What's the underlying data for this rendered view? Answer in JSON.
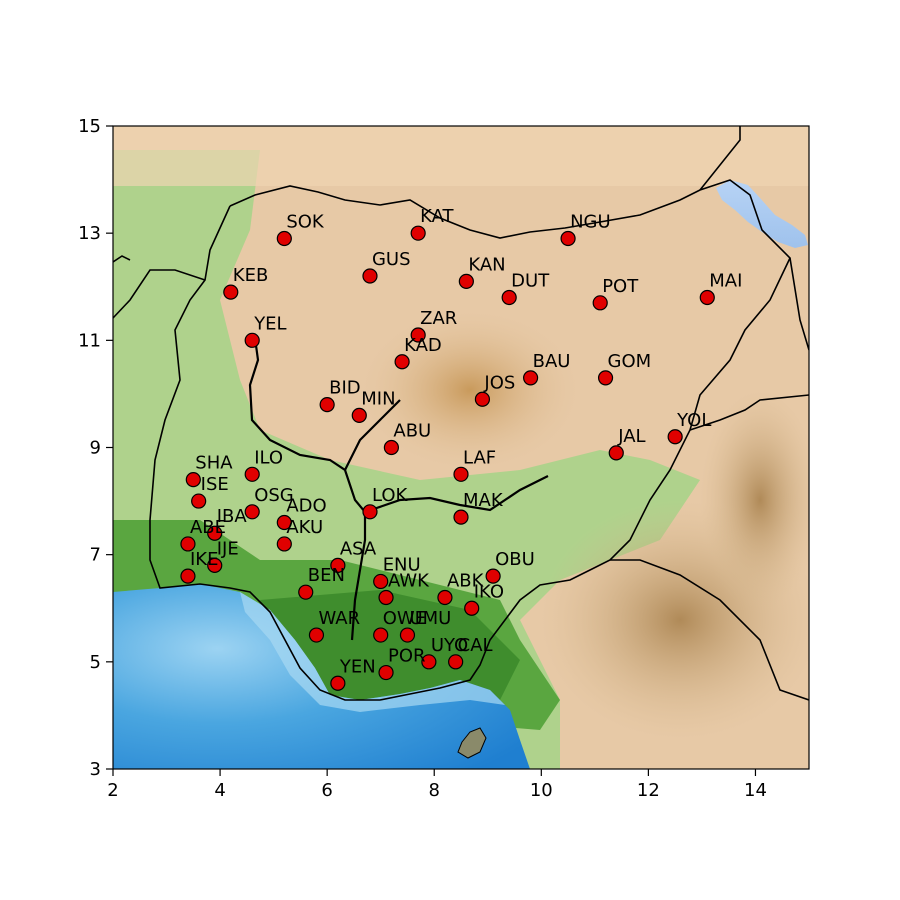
{
  "map": {
    "region": "Nigeria",
    "x_range": [
      2,
      15
    ],
    "y_range": [
      3,
      15
    ],
    "x_ticks": [
      2,
      4,
      6,
      8,
      10,
      12,
      14
    ],
    "y_ticks": [
      3,
      5,
      7,
      9,
      11,
      13,
      15
    ],
    "marker_color": "#e00000",
    "marker_edge_color": "#000000",
    "ocean_color": "#3e9ad8",
    "land_green": "#6cb84e",
    "land_tan": "#e9c9a8",
    "basemap": "shaded-relief"
  },
  "chart_data": {
    "type": "scatter",
    "xlim": [
      2,
      15
    ],
    "ylim": [
      3,
      15
    ],
    "points": [
      {
        "label": "SOK",
        "x": 5.2,
        "y": 12.9
      },
      {
        "label": "KAT",
        "x": 7.7,
        "y": 13.0
      },
      {
        "label": "NGU",
        "x": 10.5,
        "y": 12.9
      },
      {
        "label": "GUS",
        "x": 6.8,
        "y": 12.2
      },
      {
        "label": "KAN",
        "x": 8.6,
        "y": 12.1
      },
      {
        "label": "KEB",
        "x": 4.2,
        "y": 11.9
      },
      {
        "label": "DUT",
        "x": 9.4,
        "y": 11.8
      },
      {
        "label": "POT",
        "x": 11.1,
        "y": 11.7
      },
      {
        "label": "MAI",
        "x": 13.1,
        "y": 11.8
      },
      {
        "label": "YEL",
        "x": 4.6,
        "y": 11.0
      },
      {
        "label": "ZAR",
        "x": 7.7,
        "y": 11.1
      },
      {
        "label": "KAD",
        "x": 7.4,
        "y": 10.6
      },
      {
        "label": "BAU",
        "x": 9.8,
        "y": 10.3
      },
      {
        "label": "GOM",
        "x": 11.2,
        "y": 10.3
      },
      {
        "label": "JOS",
        "x": 8.9,
        "y": 9.9
      },
      {
        "label": "BID",
        "x": 6.0,
        "y": 9.8
      },
      {
        "label": "MIN",
        "x": 6.6,
        "y": 9.6
      },
      {
        "label": "YOL",
        "x": 12.5,
        "y": 9.2
      },
      {
        "label": "ABU",
        "x": 7.2,
        "y": 9.0
      },
      {
        "label": "JAL",
        "x": 11.4,
        "y": 8.9
      },
      {
        "label": "ILO",
        "x": 4.6,
        "y": 8.5
      },
      {
        "label": "LAF",
        "x": 8.5,
        "y": 8.5
      },
      {
        "label": "SHA",
        "x": 3.5,
        "y": 8.4
      },
      {
        "label": "ISE",
        "x": 3.6,
        "y": 8.0
      },
      {
        "label": "OSG",
        "x": 4.6,
        "y": 7.8
      },
      {
        "label": "LOK",
        "x": 6.8,
        "y": 7.8
      },
      {
        "label": "MAK",
        "x": 8.5,
        "y": 7.7
      },
      {
        "label": "ADO",
        "x": 5.2,
        "y": 7.6
      },
      {
        "label": "IBA",
        "x": 3.9,
        "y": 7.4
      },
      {
        "label": "AKU",
        "x": 5.2,
        "y": 7.2
      },
      {
        "label": "ABE",
        "x": 3.4,
        "y": 7.2
      },
      {
        "label": "IJE",
        "x": 3.9,
        "y": 6.8
      },
      {
        "label": "ASA",
        "x": 6.2,
        "y": 6.8
      },
      {
        "label": "IKE",
        "x": 3.4,
        "y": 6.6
      },
      {
        "label": "OBU",
        "x": 9.1,
        "y": 6.6
      },
      {
        "label": "ENU",
        "x": 7.0,
        "y": 6.5
      },
      {
        "label": "BEN",
        "x": 5.6,
        "y": 6.3
      },
      {
        "label": "ABK",
        "x": 8.2,
        "y": 6.2
      },
      {
        "label": "AWK",
        "x": 7.1,
        "y": 6.2
      },
      {
        "label": "IKO",
        "x": 8.7,
        "y": 6.0
      },
      {
        "label": "WAR",
        "x": 5.8,
        "y": 5.5
      },
      {
        "label": "OWE",
        "x": 7.0,
        "y": 5.5
      },
      {
        "label": "UMU",
        "x": 7.5,
        "y": 5.5
      },
      {
        "label": "UYO",
        "x": 7.9,
        "y": 5.0
      },
      {
        "label": "CAL",
        "x": 8.4,
        "y": 5.0
      },
      {
        "label": "POR",
        "x": 7.1,
        "y": 4.8
      },
      {
        "label": "YEN",
        "x": 6.2,
        "y": 4.6
      }
    ]
  }
}
